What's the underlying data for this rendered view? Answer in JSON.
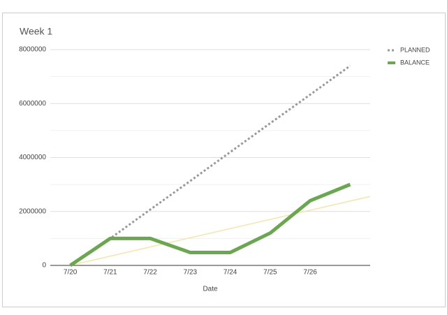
{
  "chart_data": {
    "type": "line",
    "title": "Week 1",
    "x_label": "Date",
    "categories": [
      "7/20",
      "7/21",
      "7/22",
      "7/23",
      "7/24",
      "7/25",
      "7/26",
      null
    ],
    "series": [
      {
        "name": "PLANNED",
        "color": "#999999",
        "dashed": true,
        "values": [
          0,
          1000000,
          2070000,
          3130000,
          4200000,
          5270000,
          6330000,
          7400000
        ]
      },
      {
        "name": "BALANCE",
        "color": "#6aa84f",
        "dashed": false,
        "trendline_color": "#f9e4a8",
        "values": [
          0,
          1000000,
          1000000,
          480000,
          480000,
          1200000,
          2400000,
          3000000
        ]
      }
    ],
    "ylim": [
      0,
      8000000
    ],
    "yticks": [
      0,
      2000000,
      4000000,
      6000000,
      8000000
    ],
    "grid": true,
    "legend": "right"
  }
}
